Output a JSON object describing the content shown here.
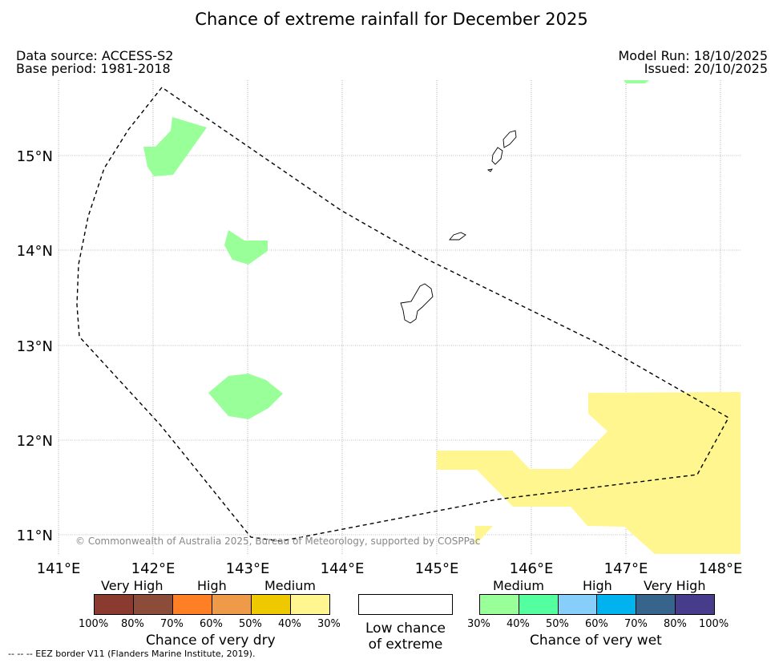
{
  "title": "Chance of extreme rainfall for December 2025",
  "meta_left": {
    "data_source": "Data source: ACCESS-S2",
    "base_period": "Base period: 1981-2018"
  },
  "meta_right": {
    "model_run": "Model Run: 18/10/2025",
    "issued": "Issued: 20/10/2025"
  },
  "map": {
    "lat_labels": [
      "15°N",
      "14°N",
      "13°N",
      "12°N",
      "11°N"
    ],
    "lon_labels": [
      "141°E",
      "142°E",
      "143°E",
      "144°E",
      "145°E",
      "146°E",
      "147°E",
      "148°E"
    ],
    "copyright": "© Commonwealth of Australia 2025, Bureau of Meteorology, supported by COSPPac",
    "colors": {
      "wet_medium": "#99ff99",
      "dry_medium": "#fff68f",
      "eez_line": "#000000",
      "gridline": "#808080"
    }
  },
  "legend": {
    "dry": {
      "categories": [
        "Very High",
        "High",
        "Medium"
      ],
      "ticks": [
        "100%",
        "80%",
        "70%",
        "60%",
        "50%",
        "40%",
        "30%"
      ],
      "colors": [
        "#8b3a2f",
        "#8b4c39",
        "#ff7f24",
        "#ee9a49",
        "#eec900",
        "#fff68f"
      ],
      "title": "Chance of very dry"
    },
    "low": {
      "line1": "Low chance",
      "line2": "of extreme",
      "color": "#ffffff"
    },
    "wet": {
      "categories": [
        "Medium",
        "High",
        "Very High"
      ],
      "ticks": [
        "30%",
        "40%",
        "50%",
        "60%",
        "70%",
        "80%",
        "100%"
      ],
      "colors": [
        "#99ff99",
        "#54ff9f",
        "#87cefa",
        "#00b2ee",
        "#36648b",
        "#473c8b"
      ],
      "title": "Chance of very wet"
    }
  },
  "footnote": "--  --  -- EEZ border V11 (Flanders Marine Institute, 2019)."
}
